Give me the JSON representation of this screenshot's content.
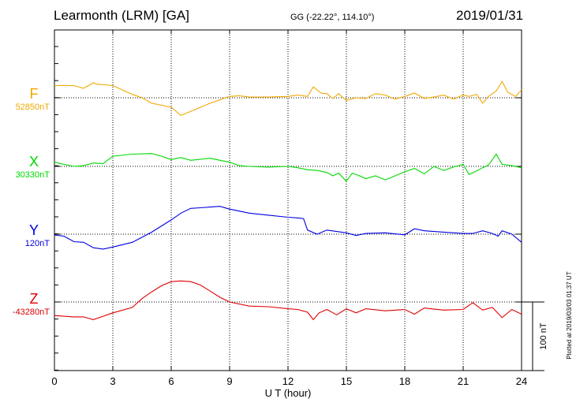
{
  "header": {
    "station": "Learmonth (LRM)  [GA]",
    "coords": "GG (-22.22°, 114.10°)",
    "date": "2019/01/31"
  },
  "footer_note": "Plotted at 2019/03/03 01:37 UT",
  "scale_label": "100 nT",
  "chart_data": {
    "type": "line",
    "xlabel": "U T (hour)",
    "xlim": [
      0,
      24
    ],
    "xticks": [
      "0",
      "3",
      "6",
      "9",
      "12",
      "15",
      "18",
      "21",
      "24"
    ],
    "y_units": "nT",
    "scale_bar_nT": 100,
    "series": [
      {
        "name": "F",
        "baseline_label": "52850nT",
        "baseline_nT": 52850,
        "color": "#f0a800",
        "x": [
          0,
          1,
          1.5,
          2,
          2.2,
          3,
          4,
          4.5,
          5,
          6,
          6.5,
          7,
          8,
          9,
          9.5,
          10,
          11,
          12,
          12.5,
          13,
          13.3,
          13.7,
          14,
          14.3,
          14.6,
          15,
          15.5,
          16,
          16.5,
          17,
          17.5,
          18,
          18.5,
          19,
          19.5,
          20,
          20.5,
          21,
          21.3,
          21.7,
          22,
          22.3,
          22.7,
          23,
          23.3,
          23.7,
          24
        ],
        "y": [
          52868,
          52868,
          52864,
          52872,
          52870,
          52868,
          52855,
          52850,
          52842,
          52836,
          52824,
          52830,
          52842,
          52852,
          52853,
          52851,
          52851,
          52852,
          52854,
          52852,
          52866,
          52857,
          52856,
          52849,
          52856,
          52846,
          52850,
          52849,
          52856,
          52854,
          52848,
          52852,
          52857,
          52849,
          52851,
          52854,
          52848,
          52854,
          52852,
          52855,
          52842,
          52852,
          52860,
          52874,
          52858,
          52852,
          52862
        ]
      },
      {
        "name": "X",
        "baseline_label": "30330nT",
        "baseline_nT": 30330,
        "color": "#00d800",
        "x": [
          0,
          1,
          1.5,
          2,
          2.5,
          3,
          4,
          5,
          5.5,
          6,
          6.5,
          7,
          8,
          9,
          9.5,
          10,
          11,
          12,
          12.5,
          13,
          13.5,
          14,
          14.3,
          14.6,
          15,
          15.3,
          15.6,
          16,
          16.5,
          17,
          17.5,
          18,
          18.5,
          19,
          19.5,
          20,
          20.5,
          21,
          21.3,
          21.6,
          22,
          22.3,
          22.7,
          23,
          23.5,
          24
        ],
        "y": [
          30336,
          30330,
          30331,
          30335,
          30334,
          30345,
          30348,
          30349,
          30345,
          30340,
          30343,
          30339,
          30342,
          30336,
          30331,
          30330,
          30329,
          30330,
          30328,
          30325,
          30324,
          30321,
          30316,
          30320,
          30308,
          30320,
          30317,
          30312,
          30316,
          30310,
          30316,
          30322,
          30327,
          30319,
          30330,
          30324,
          30329,
          30333,
          30318,
          30322,
          30328,
          30332,
          30348,
          30333,
          30331,
          30328
        ]
      },
      {
        "name": "Y",
        "baseline_label": "120nT",
        "baseline_nT": 120,
        "color": "#0000e0",
        "x": [
          0,
          0.5,
          1,
          1.5,
          2,
          2.5,
          3,
          4,
          5,
          6,
          6.5,
          7,
          7.5,
          8,
          8.5,
          9,
          10,
          11,
          12,
          12.5,
          12.8,
          13,
          13.5,
          14,
          14.5,
          15,
          15.5,
          16,
          17,
          18,
          18.5,
          19,
          20,
          21,
          21.5,
          22,
          22.5,
          22.8,
          23,
          23.5,
          24
        ],
        "y": [
          119,
          117,
          109,
          108,
          100,
          98,
          101,
          108,
          123,
          141,
          151,
          158,
          159,
          160,
          161,
          157,
          151,
          148,
          145,
          144,
          143,
          126,
          120,
          126,
          124,
          122,
          118,
          121,
          122,
          119,
          128,
          125,
          123,
          121,
          121,
          125,
          121,
          117,
          125,
          120,
          108
        ]
      },
      {
        "name": "Z",
        "baseline_label": "-43280nT",
        "baseline_nT": -43280,
        "color": "#e00000",
        "x": [
          0,
          1,
          1.5,
          2,
          2.5,
          3,
          4,
          4.5,
          5,
          5.5,
          6,
          6.5,
          7,
          7.5,
          8,
          8.5,
          9,
          10,
          11,
          12,
          12.5,
          13,
          13.3,
          13.6,
          14,
          14.5,
          15,
          15.5,
          16,
          17,
          18,
          18.5,
          19,
          20,
          21,
          21.5,
          22,
          22.5,
          23,
          23.5,
          24
        ],
        "y": [
          -43300,
          -43302,
          -43302,
          -43306,
          -43301,
          -43296,
          -43288,
          -43275,
          -43265,
          -43256,
          -43250,
          -43249,
          -43250,
          -43255,
          -43264,
          -43273,
          -43280,
          -43286,
          -43287,
          -43290,
          -43291,
          -43295,
          -43306,
          -43296,
          -43291,
          -43299,
          -43290,
          -43296,
          -43290,
          -43293,
          -43291,
          -43298,
          -43289,
          -43292,
          -43291,
          -43281,
          -43292,
          -43288,
          -43303,
          -43291,
          -43298
        ]
      }
    ]
  }
}
